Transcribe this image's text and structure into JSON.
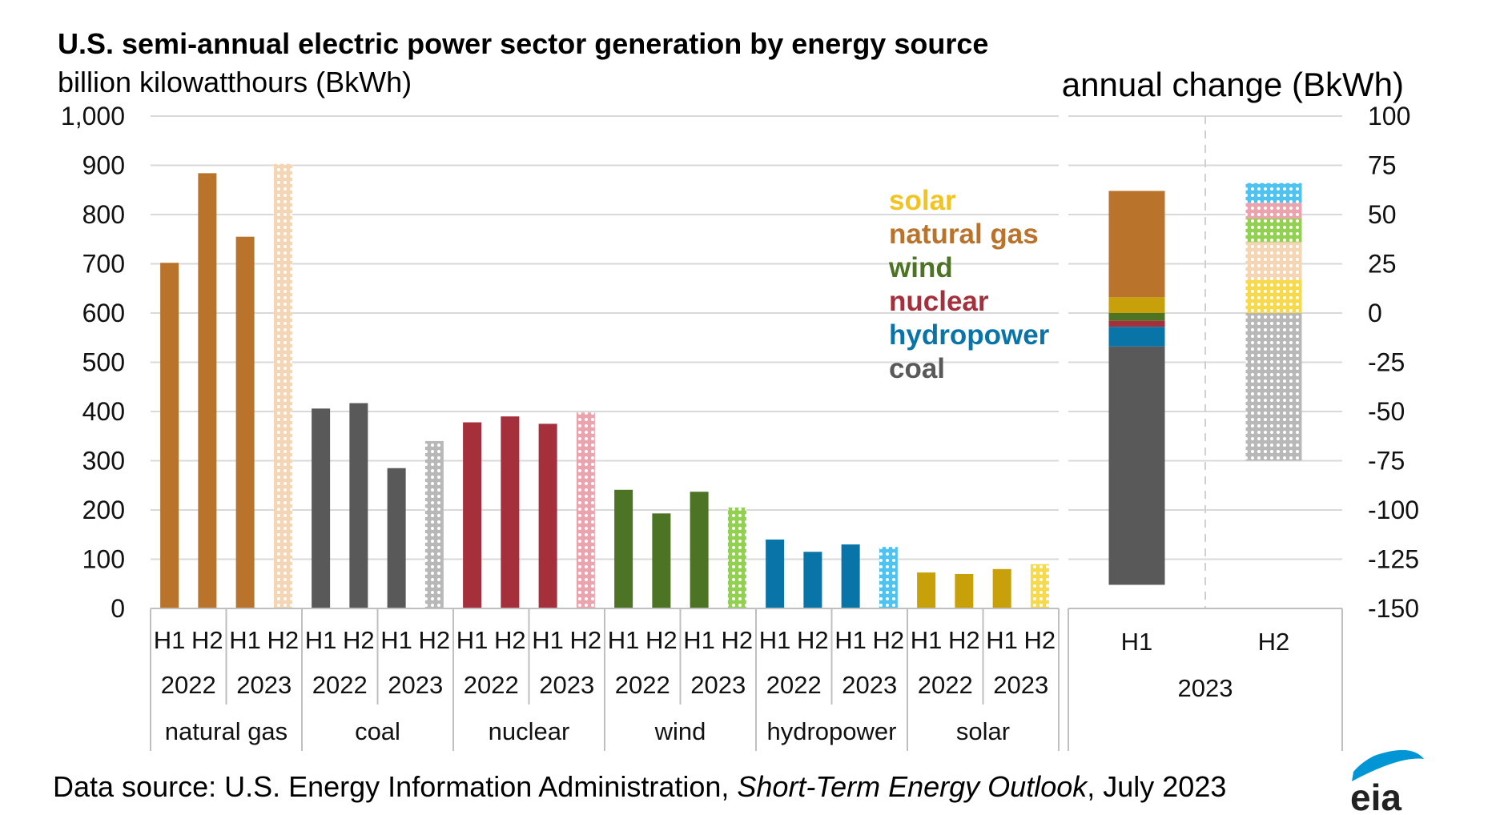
{
  "title": "U.S. semi-annual electric power sector generation by energy source",
  "left_units": "billion kilowatthours (BkWh)",
  "right_units": "annual change (BkWh)",
  "source": {
    "prefix": "Data source: U.S. Energy Information Administration, ",
    "report": "Short-Term Energy Outlook",
    "suffix": ", July 2023"
  },
  "logo_text": "eia",
  "colors": {
    "natural gas": "#BA732B",
    "coal": "#595959",
    "nuclear": "#A52F3B",
    "wind": "#4D7325",
    "hydropower": "#0874A8",
    "solar": "#C8A10A",
    "solar_legend": "#F2C421",
    "forecast": {
      "natural gas": "#F5D6B4",
      "coal": "#B8B8B8",
      "nuclear": "#EBA4AE",
      "wind": "#92D050",
      "hydropower": "#4FC3F0",
      "solar": "#F7D94C"
    },
    "grid": "#D9D9D9",
    "axis": "#BFBFBF"
  },
  "chart_data": [
    {
      "type": "bar",
      "title": "U.S. semi-annual electric power sector generation by energy source",
      "ylabel": "billion kilowatthours (BkWh)",
      "ylim": [
        0,
        1000
      ],
      "yticks": [
        "0",
        "100",
        "200",
        "300",
        "400",
        "500",
        "600",
        "700",
        "800",
        "900",
        "1,000"
      ],
      "grid": true,
      "groups": [
        {
          "name": "natural gas",
          "years": [
            {
              "year": "2022",
              "halves": [
                {
                  "label": "H1",
                  "value": 702
                },
                {
                  "label": "H2",
                  "value": 884
                }
              ]
            },
            {
              "year": "2023",
              "halves": [
                {
                  "label": "H1",
                  "value": 755
                },
                {
                  "label": "H2",
                  "value": 903,
                  "forecast": true
                }
              ]
            }
          ]
        },
        {
          "name": "coal",
          "years": [
            {
              "year": "2022",
              "halves": [
                {
                  "label": "H1",
                  "value": 406
                },
                {
                  "label": "H2",
                  "value": 417
                }
              ]
            },
            {
              "year": "2023",
              "halves": [
                {
                  "label": "H1",
                  "value": 285
                },
                {
                  "label": "H2",
                  "value": 340,
                  "forecast": true
                }
              ]
            }
          ]
        },
        {
          "name": "nuclear",
          "years": [
            {
              "year": "2022",
              "halves": [
                {
                  "label": "H1",
                  "value": 378
                },
                {
                  "label": "H2",
                  "value": 390
                }
              ]
            },
            {
              "year": "2023",
              "halves": [
                {
                  "label": "H1",
                  "value": 375
                },
                {
                  "label": "H2",
                  "value": 398,
                  "forecast": true
                }
              ]
            }
          ]
        },
        {
          "name": "wind",
          "years": [
            {
              "year": "2022",
              "halves": [
                {
                  "label": "H1",
                  "value": 241
                },
                {
                  "label": "H2",
                  "value": 193
                }
              ]
            },
            {
              "year": "2023",
              "halves": [
                {
                  "label": "H1",
                  "value": 237
                },
                {
                  "label": "H2",
                  "value": 205,
                  "forecast": true
                }
              ]
            }
          ]
        },
        {
          "name": "hydropower",
          "years": [
            {
              "year": "2022",
              "halves": [
                {
                  "label": "H1",
                  "value": 140
                },
                {
                  "label": "H2",
                  "value": 115
                }
              ]
            },
            {
              "year": "2023",
              "halves": [
                {
                  "label": "H1",
                  "value": 130
                },
                {
                  "label": "H2",
                  "value": 125,
                  "forecast": true
                }
              ]
            }
          ]
        },
        {
          "name": "solar",
          "years": [
            {
              "year": "2022",
              "halves": [
                {
                  "label": "H1",
                  "value": 73
                },
                {
                  "label": "H2",
                  "value": 70
                }
              ]
            },
            {
              "year": "2023",
              "halves": [
                {
                  "label": "H1",
                  "value": 80
                },
                {
                  "label": "H2",
                  "value": 90,
                  "forecast": true
                }
              ]
            }
          ]
        }
      ]
    },
    {
      "type": "bar",
      "subtype": "stacked",
      "ylabel": "annual change (BkWh)",
      "ylim": [
        -150,
        100
      ],
      "yticks": [
        "100",
        "75",
        "50",
        "25",
        "0",
        "-25",
        "-50",
        "-75",
        "-100",
        "-125",
        "-150"
      ],
      "year": "2023",
      "categories": [
        "H1",
        "H2"
      ],
      "series": [
        {
          "name": "solar",
          "values": [
            8,
            17
          ]
        },
        {
          "name": "natural gas",
          "values": [
            54,
            19
          ]
        },
        {
          "name": "wind",
          "values": [
            -4,
            12
          ]
        },
        {
          "name": "nuclear",
          "values": [
            -3,
            8
          ]
        },
        {
          "name": "hydropower",
          "values": [
            -10,
            10
          ]
        },
        {
          "name": "coal",
          "values": [
            -121,
            -75
          ]
        }
      ],
      "forecast_categories": [
        "H2"
      ],
      "legend": {
        "position": "upper-right of left panel",
        "entries": [
          "solar",
          "natural gas",
          "wind",
          "nuclear",
          "hydropower",
          "coal"
        ]
      }
    }
  ]
}
